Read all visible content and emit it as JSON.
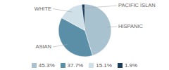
{
  "chart_data": {
    "type": "pie",
    "categories": [
      "HISPANIC",
      "ASIAN",
      "WHITE",
      "PACIFIC ISLAN"
    ],
    "values": [
      45.3,
      37.7,
      15.1,
      1.9
    ],
    "value_labels": [
      "45.3%",
      "37.7%",
      "15.1%",
      "1.9%"
    ],
    "colors": [
      "#a8c2d0",
      "#5b8fa8",
      "#cfe0e8",
      "#1a3d5c"
    ]
  }
}
